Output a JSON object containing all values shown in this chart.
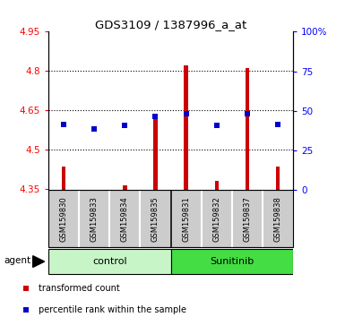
{
  "title": "GDS3109 / 1387996_a_at",
  "samples": [
    "GSM159830",
    "GSM159833",
    "GSM159834",
    "GSM159835",
    "GSM159831",
    "GSM159832",
    "GSM159837",
    "GSM159838"
  ],
  "red_values": [
    4.435,
    4.347,
    4.362,
    4.635,
    4.822,
    4.38,
    4.812,
    4.435
  ],
  "blue_values": [
    4.597,
    4.578,
    4.592,
    4.628,
    4.638,
    4.592,
    4.638,
    4.597
  ],
  "baseline": 4.345,
  "ylim_left": [
    4.345,
    4.95
  ],
  "ylim_right": [
    0,
    100
  ],
  "yticks_left": [
    4.35,
    4.5,
    4.65,
    4.8,
    4.95
  ],
  "yticks_right": [
    0,
    25,
    50,
    75,
    100
  ],
  "ytick_labels_left": [
    "4.35",
    "4.5",
    "4.65",
    "4.8",
    "4.95"
  ],
  "ytick_labels_right": [
    "0",
    "25",
    "50",
    "75",
    "100%"
  ],
  "grid_lines": [
    4.5,
    4.65,
    4.8
  ],
  "control_color": "#c8f5c8",
  "sunitinib_color": "#44dd44",
  "bar_gray": "#cccccc",
  "bar_color": "#cc0000",
  "dot_color": "#0000cc",
  "legend_red": "transformed count",
  "legend_blue": "percentile rank within the sample",
  "n_control": 4,
  "n_sunitinib": 4
}
